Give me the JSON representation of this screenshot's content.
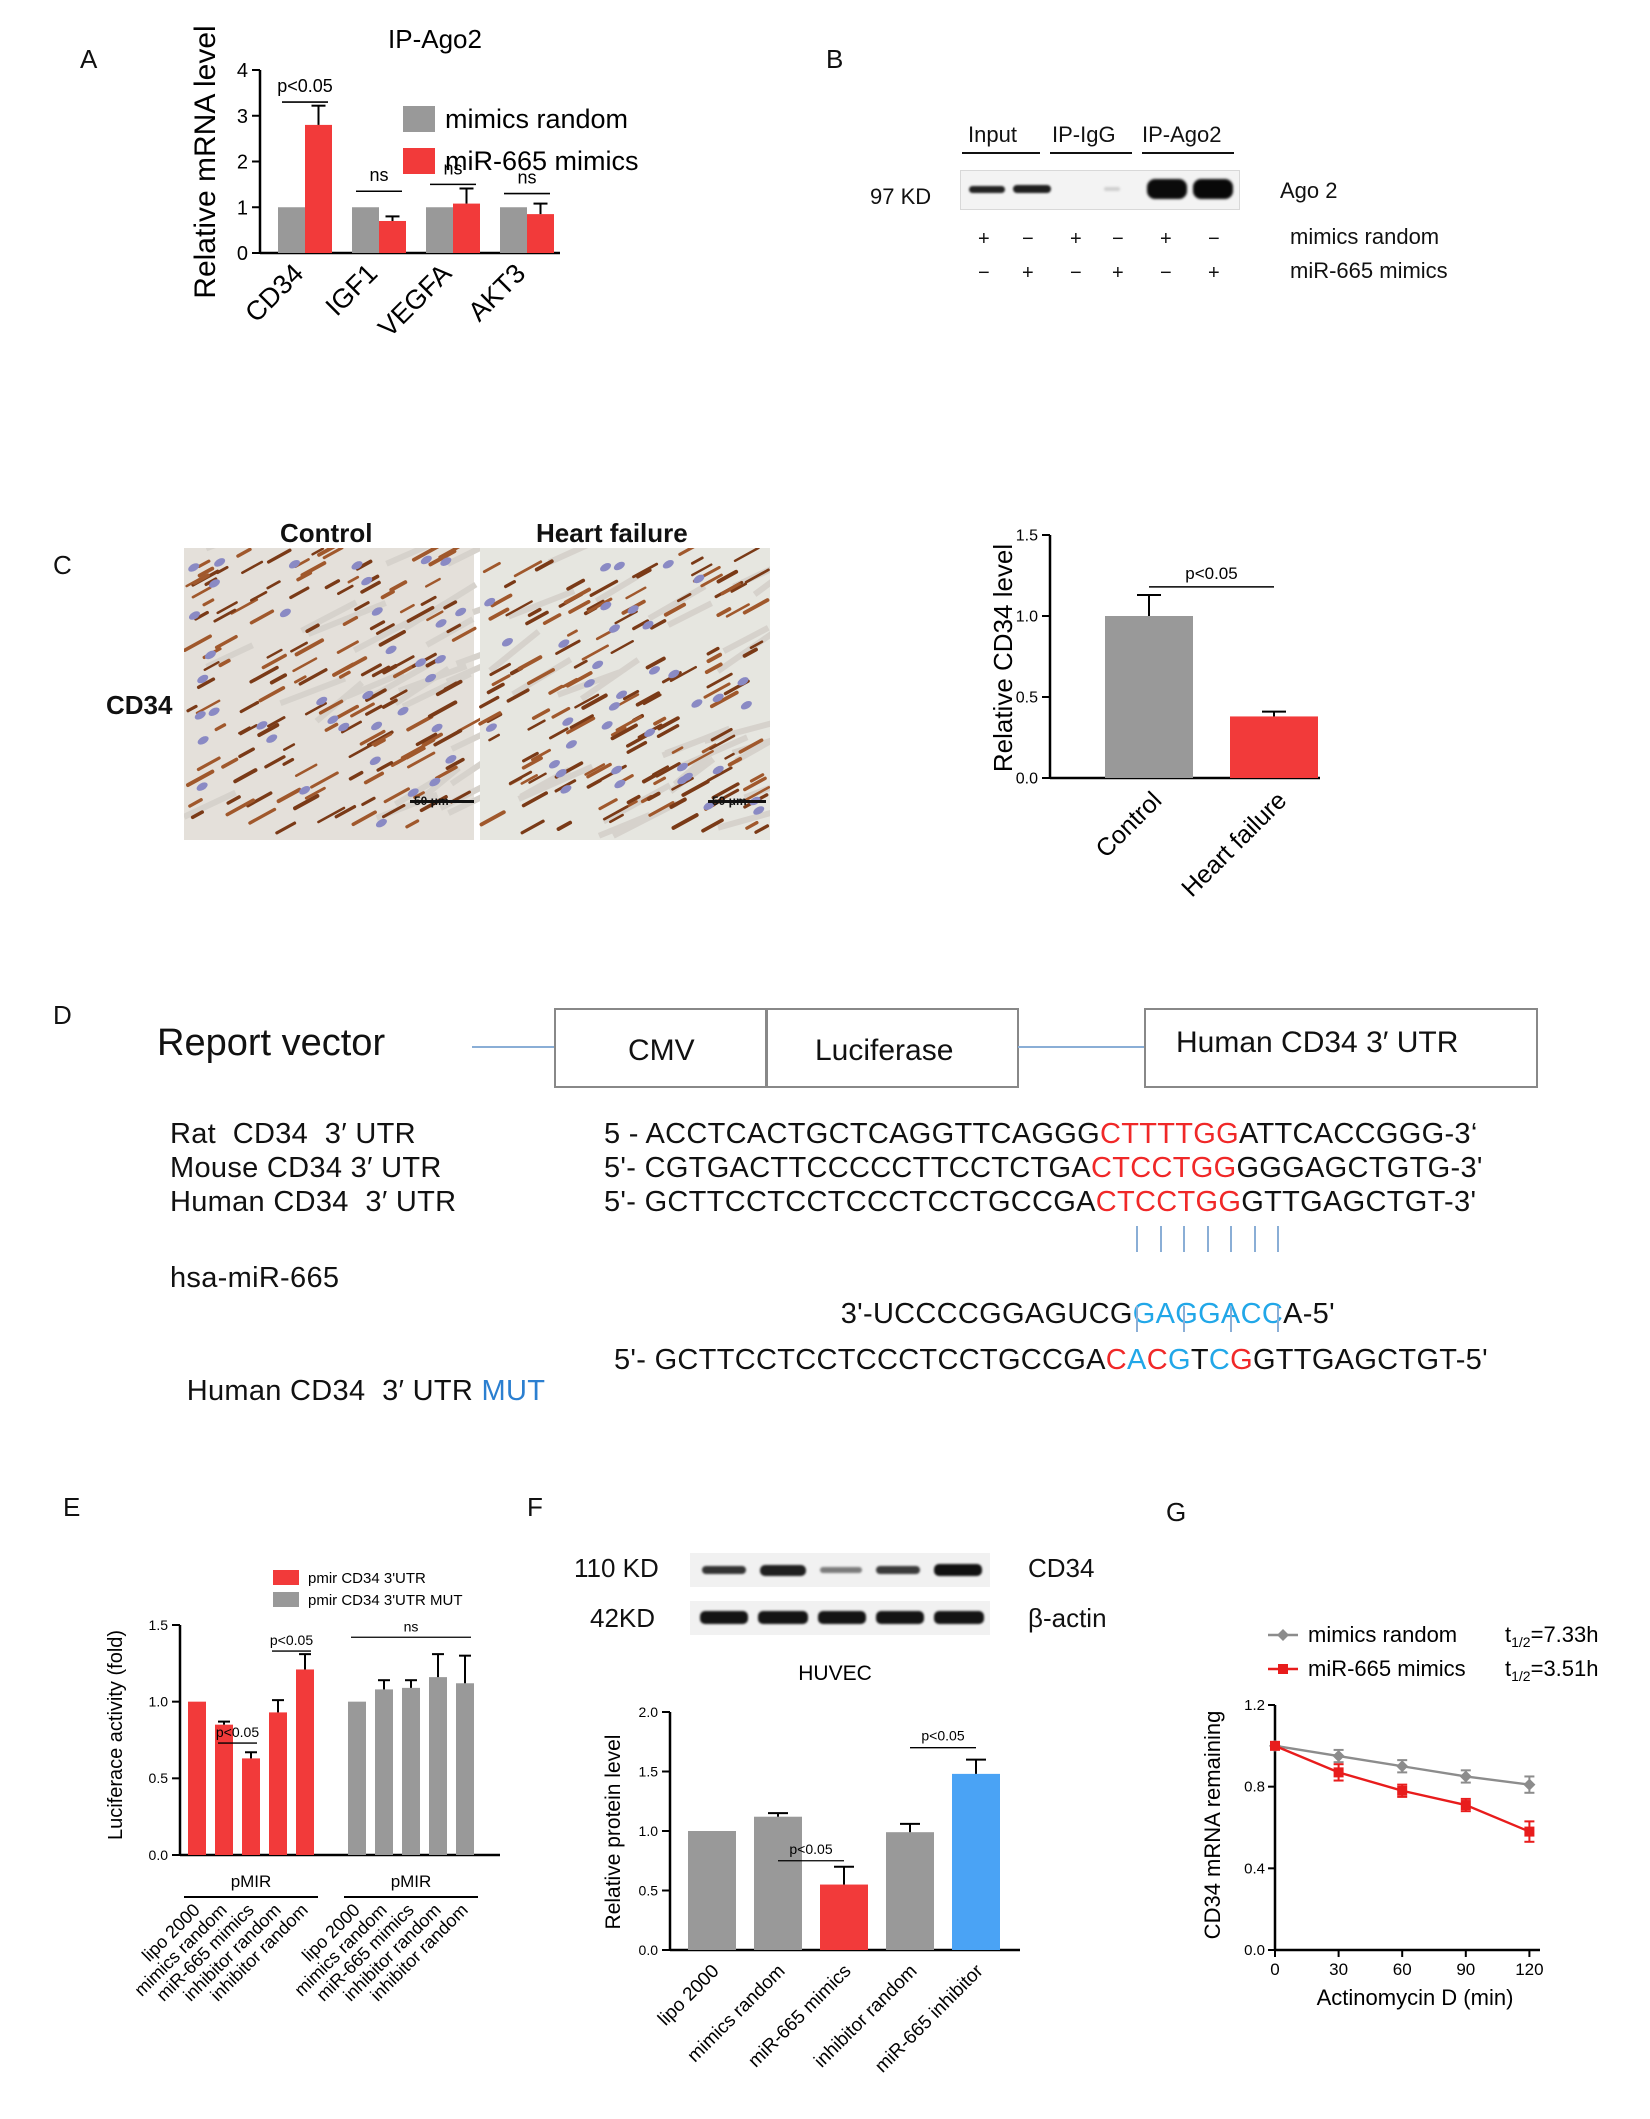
{
  "panels": {
    "A": "A",
    "B": "B",
    "C": "C",
    "D": "D",
    "E": "E",
    "F": "F",
    "G": "G"
  },
  "colors": {
    "gray": "#999999",
    "red": "#f23a3a",
    "blue": "#4aa3f5",
    "grid": "#000000",
    "seq_red": "#f02828",
    "seq_blue": "#21a7e8",
    "link": "#8aaed6"
  },
  "chart_data": [
    {
      "id": "A",
      "type": "bar",
      "title": "IP-Ago2",
      "ylabel": "Relative mRNA level",
      "ylim": [
        0,
        4
      ],
      "yticks": [
        0,
        1,
        2,
        3,
        4
      ],
      "categories": [
        "CD34",
        "IGF1",
        "VEGFA",
        "AKT3"
      ],
      "series": [
        {
          "name": "mimics random",
          "color": "#999999",
          "values": [
            1,
            1,
            1,
            1
          ],
          "errors": [
            0,
            0,
            0,
            0
          ]
        },
        {
          "name": "miR-665 mimics",
          "color": "#f23a3a",
          "values": [
            2.8,
            0.7,
            1.08,
            0.85
          ],
          "errors": [
            0.42,
            0.1,
            0.33,
            0.23
          ]
        }
      ],
      "annotations": [
        {
          "text": "p<0.05",
          "category": 0,
          "y": 3.3
        },
        {
          "text": "ns",
          "category": 1,
          "y": 1.35
        },
        {
          "text": "ns",
          "category": 2,
          "y": 1.5
        },
        {
          "text": "ns",
          "category": 3,
          "y": 1.3
        }
      ]
    },
    {
      "id": "C",
      "type": "bar",
      "title": "",
      "ylabel": "Relative CD34  level",
      "ylim": [
        0,
        1.5
      ],
      "yticks": [
        "0.0",
        "0.5",
        "1.0",
        "1.5"
      ],
      "categories": [
        "Control",
        "Heart failure"
      ],
      "values": [
        1.0,
        0.38
      ],
      "errors": [
        0.13,
        0.03
      ],
      "colors": [
        "#999999",
        "#f23a3a"
      ],
      "annotations": [
        {
          "text": "p<0.05",
          "from": 0,
          "to": 1,
          "y": 1.18
        }
      ]
    },
    {
      "id": "E",
      "type": "bar",
      "title": "",
      "ylabel": "Luciferace activity (fold)",
      "ylim": [
        0,
        1.5
      ],
      "yticks": [
        "0.0",
        "0.5",
        "1.0",
        "1.5"
      ],
      "legend": [
        {
          "name": "pmir CD34 3'UTR",
          "color": "#f23a3a"
        },
        {
          "name": "pmir CD34 3'UTR  MUT",
          "color": "#999999"
        }
      ],
      "groups": [
        {
          "name": "pMIR",
          "color": "#f23a3a",
          "categories": [
            "lipo 2000",
            "mimics random",
            "miR-665 mimics",
            "inhibitor random",
            "inhibitor random"
          ],
          "values": [
            1.0,
            0.85,
            0.63,
            0.93,
            1.21
          ],
          "errors": [
            0,
            0.02,
            0.04,
            0.08,
            0.1
          ]
        },
        {
          "name": "pMIR",
          "color": "#999999",
          "categories": [
            "lipo 2000",
            "mimics random",
            "miR-665 mimics",
            "inhibitor random",
            "inhibitor random"
          ],
          "values": [
            1.0,
            1.08,
            1.09,
            1.16,
            1.12
          ],
          "errors": [
            0,
            0.06,
            0.05,
            0.15,
            0.18
          ]
        }
      ],
      "annotations": [
        {
          "text": "p<0.05",
          "from": [
            0,
            1
          ],
          "to": [
            0,
            2
          ],
          "y": 0.73
        },
        {
          "text": "p<0.05",
          "from": [
            0,
            3
          ],
          "to": [
            0,
            4
          ],
          "y": 1.33
        },
        {
          "text": "ns",
          "from": [
            1,
            0
          ],
          "to": [
            1,
            4
          ],
          "y": 1.42
        }
      ]
    },
    {
      "id": "F",
      "type": "bar",
      "title": "HUVEC",
      "ylabel": "Relative protein level",
      "ylim": [
        0,
        2
      ],
      "yticks": [
        "0.0",
        "0.5",
        "1.0",
        "1.5",
        "2.0"
      ],
      "categories": [
        "lipo 2000",
        "mimics random",
        "miR-665 mimics",
        "inhibitor random",
        "miR-665 inhibitor"
      ],
      "values": [
        1.0,
        1.12,
        0.55,
        0.99,
        1.48
      ],
      "errors": [
        0,
        0.03,
        0.15,
        0.07,
        0.12
      ],
      "colors": [
        "#999999",
        "#999999",
        "#f23a3a",
        "#999999",
        "#4aa3f5"
      ],
      "annotations": [
        {
          "text": "p<0.05",
          "from": 1,
          "to": 2,
          "y": 0.75
        },
        {
          "text": "p<0.05",
          "from": 3,
          "to": 4,
          "y": 1.7
        }
      ]
    },
    {
      "id": "G",
      "type": "line",
      "title": "",
      "xlabel": "Actinomycin D (min)",
      "ylabel": "CD34 mRNA remaining",
      "xlim": [
        0,
        125
      ],
      "ylim": [
        0,
        1.2
      ],
      "xticks": [
        0,
        30,
        60,
        90,
        120
      ],
      "yticks": [
        "0.0",
        "0.4",
        "0.8",
        "1.2"
      ],
      "x": [
        0,
        30,
        60,
        90,
        120
      ],
      "series": [
        {
          "name": "mimics random",
          "halflife_prefix": "t",
          "halflife_sub": "1/2",
          "halflife_value": "=7.33h",
          "color": "#8c8c8c",
          "marker": "diamond",
          "values": [
            1.0,
            0.95,
            0.9,
            0.85,
            0.81
          ],
          "errors": [
            0,
            0.03,
            0.03,
            0.03,
            0.04
          ]
        },
        {
          "name": "miR-665 mimics",
          "halflife_prefix": "t",
          "halflife_sub": "1/2",
          "halflife_value": "=3.51h",
          "color": "#e81c1c",
          "marker": "square",
          "values": [
            1.0,
            0.87,
            0.78,
            0.71,
            0.58
          ],
          "errors": [
            0,
            0.04,
            0.03,
            0.03,
            0.05
          ]
        }
      ]
    }
  ],
  "western_b": {
    "headers": [
      "Input",
      "IP-IgG",
      "IP-Ago2"
    ],
    "marker": "97 KD",
    "band_label": "Ago 2",
    "rows": [
      {
        "label": "mimics random",
        "signs": [
          "+",
          "−",
          "+",
          "−",
          "+",
          "−"
        ]
      },
      {
        "label": "miR-665 mimics",
        "signs": [
          "−",
          "+",
          "−",
          "+",
          "−",
          "+"
        ]
      }
    ]
  },
  "western_f": {
    "rows": [
      {
        "marker": "110 KD",
        "label": "CD34"
      },
      {
        "marker": "42KD",
        "label": "β-actin"
      }
    ]
  },
  "ihc": {
    "row_label": "CD34",
    "columns": [
      "Control",
      "Heart failure"
    ],
    "scale": "50 μm"
  },
  "vector": {
    "title": "Report vector",
    "boxes": [
      "CMV",
      "Luciferase",
      "Human  CD34 3′ UTR"
    ]
  },
  "sequences": [
    {
      "name": "Rat  CD34  3′ UTR",
      "pre": "5 - ACCTCACTGCTCAGGTTCAGGG",
      "site": "CTTTTGG",
      "post": "ATTCACCGGG-3‘"
    },
    {
      "name": "Mouse CD34 3′ UTR",
      "pre": "5'- CGTGACTTCCCCCTTCCTCTGA",
      "site": "CTCCTGG",
      "post": "GGGAGCTGTG-3'"
    },
    {
      "name": "Human CD34  3′ UTR",
      "pre": "5'- GCTTCCTCCTCCCTCCTGCCGA",
      "site": "CTCCTGG",
      "post": "GTTGAGCTGT-3'"
    }
  ],
  "mirna": {
    "name": "hsa-miR-665",
    "pre": "3'-UCCCCGGAGUCG",
    "seed": "GAGGACC",
    "post": "A-5'"
  },
  "mutant": {
    "name": "Human CD34  3′ UTR",
    "tag": "MUT",
    "pre": "5'- GCTTCCTCCTCCCTCCTGCCGA",
    "site": [
      [
        "C",
        "r"
      ],
      [
        "A",
        "b"
      ],
      [
        "C",
        "r"
      ],
      [
        "G",
        "b"
      ],
      [
        "T",
        "k"
      ],
      [
        "C",
        "b"
      ],
      [
        "G",
        "r"
      ]
    ],
    "post": "GTTGAGCTGT-5'"
  }
}
